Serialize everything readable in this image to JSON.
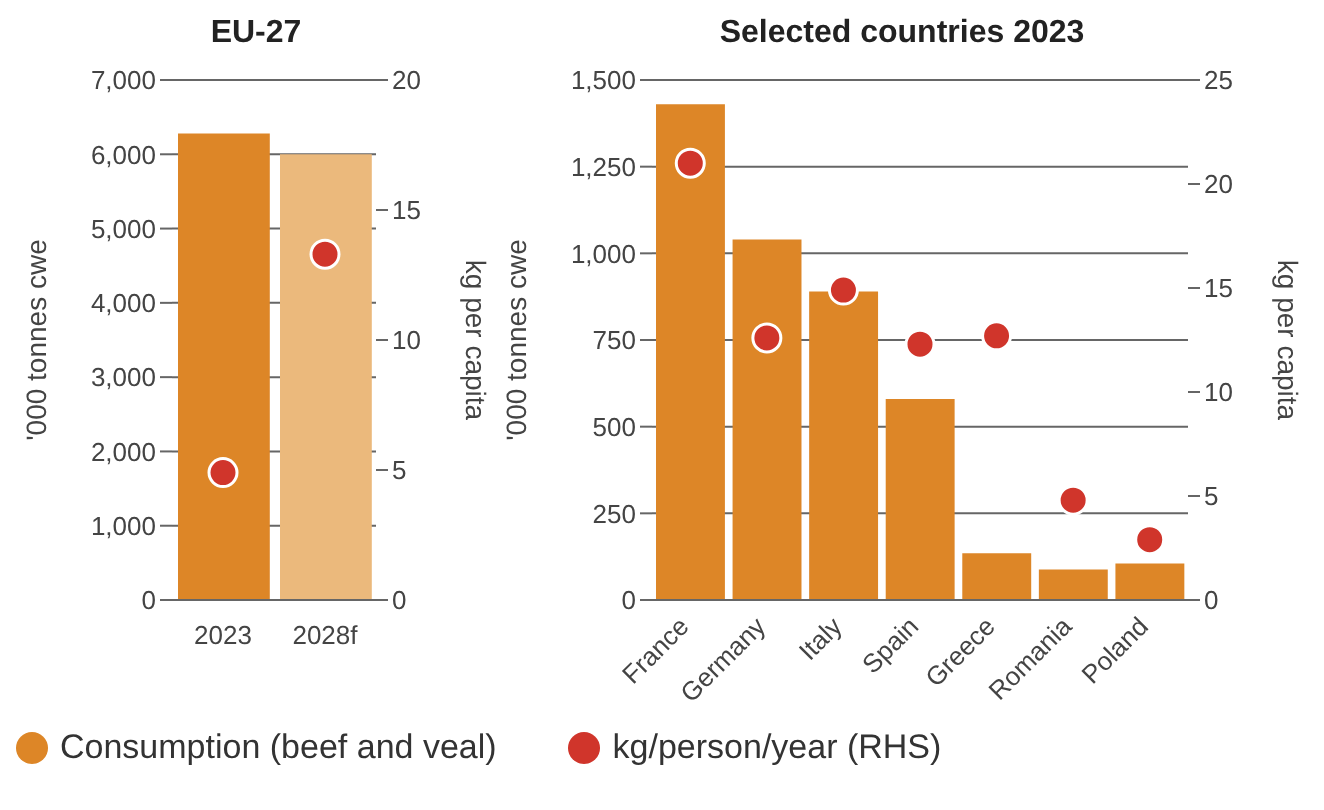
{
  "chart_data": [
    {
      "type": "bar",
      "title": "EU-27",
      "categories": [
        "2023",
        "2028f"
      ],
      "ylabel": "'000 tonnes cwe",
      "y2label": "kg per capita",
      "series": [
        {
          "name": "Consumption (beef and veal)",
          "color": "#dd8627",
          "colors": [
            "#dd8627",
            "#ebb97c"
          ],
          "values": [
            6280,
            6000
          ]
        },
        {
          "name": "kg/person/year (RHS)",
          "type": "scatter",
          "axis": "y2",
          "color": "#d0352b",
          "values": [
            4.9,
            13.3
          ]
        }
      ],
      "ylim": [
        0,
        7000
      ],
      "yticks": [
        0,
        {
          "value": 1000,
          "label": "1,000"
        },
        {
          "value": 2000,
          "label": "2,000"
        },
        {
          "value": 3000,
          "label": "3,000"
        },
        {
          "value": 4000,
          "label": "4,000"
        },
        {
          "value": 5000,
          "label": "5,000"
        },
        {
          "value": 6000,
          "label": "6,000"
        },
        {
          "value": 7000,
          "label": "7,000"
        }
      ],
      "y2lim": [
        0,
        20
      ],
      "y2ticks": [
        0,
        5,
        10,
        15,
        20
      ],
      "grid": "y",
      "marker": "circle",
      "legend": "bottom"
    },
    {
      "type": "bar",
      "title": "Selected countries 2023",
      "categories": [
        "France",
        "Germany",
        "Italy",
        "Spain",
        "Greece",
        "Romania",
        "Poland"
      ],
      "ylabel": "'000 tonnes cwe",
      "y2label": "kg per capita",
      "series": [
        {
          "name": "Consumption (beef and veal)",
          "color": "#dd8627",
          "values": [
            1430,
            1040,
            890,
            580,
            135,
            88,
            105
          ]
        },
        {
          "name": "kg/person/year (RHS)",
          "type": "scatter",
          "axis": "y2",
          "color": "#d0352b",
          "values": [
            21,
            12.6,
            14.9,
            12.3,
            12.7,
            4.8,
            2.9
          ]
        }
      ],
      "ylim": [
        0,
        1500
      ],
      "yticks": [
        0,
        250,
        500,
        750,
        {
          "value": 1000,
          "label": "1,000"
        },
        {
          "value": 1250,
          "label": "1,250"
        },
        {
          "value": 1500,
          "label": "1,500"
        }
      ],
      "y2lim": [
        0,
        25
      ],
      "y2ticks": [
        0,
        5,
        10,
        15,
        20,
        25
      ],
      "grid": "y",
      "marker": "circle",
      "legend": "bottom"
    }
  ]
}
